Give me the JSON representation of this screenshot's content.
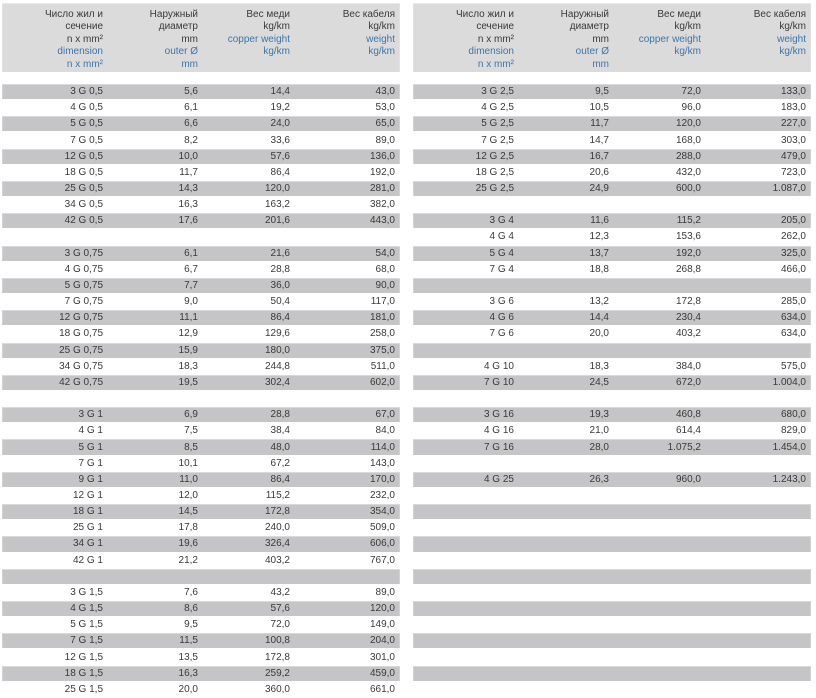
{
  "colors": {
    "row_gray": "#c5c5c7",
    "header_gray": "#dbdbdc",
    "text_dark": "#3a3a3a",
    "text_blue": "#3d76a9",
    "background": "#ffffff"
  },
  "header": {
    "columns": [
      {
        "ru": [
          "Число жил и",
          "сечение",
          "n x mm²"
        ],
        "en": [
          "dimension",
          "n x mm²"
        ]
      },
      {
        "ru": [
          "Наружный",
          "диаметр",
          "mm"
        ],
        "en": [
          "outer Ø",
          "mm"
        ]
      },
      {
        "ru": [
          "Вес меди",
          "kg/km"
        ],
        "en": [
          "copper weight",
          "kg/km"
        ]
      },
      {
        "ru": [
          "Вес кабеля",
          "kg/km"
        ],
        "en": [
          "weight",
          "kg/km"
        ]
      }
    ]
  },
  "tables": [
    {
      "name": "left",
      "rows": [
        {
          "type": "data",
          "shade": "gray",
          "cells": [
            "3 G 0,5",
            "5,6",
            "14,4",
            "43,0"
          ]
        },
        {
          "type": "data",
          "shade": "white",
          "cells": [
            "4 G 0,5",
            "6,1",
            "19,2",
            "53,0"
          ]
        },
        {
          "type": "data",
          "shade": "gray",
          "cells": [
            "5 G 0,5",
            "6,6",
            "24,0",
            "65,0"
          ]
        },
        {
          "type": "data",
          "shade": "white",
          "cells": [
            "7 G 0,5",
            "8,2",
            "33,6",
            "89,0"
          ]
        },
        {
          "type": "data",
          "shade": "gray",
          "cells": [
            "12 G 0,5",
            "10,0",
            "57,6",
            "136,0"
          ]
        },
        {
          "type": "data",
          "shade": "white",
          "cells": [
            "18 G 0,5",
            "11,7",
            "86,4",
            "192,0"
          ]
        },
        {
          "type": "data",
          "shade": "gray",
          "cells": [
            "25 G 0,5",
            "14,3",
            "120,0",
            "281,0"
          ]
        },
        {
          "type": "data",
          "shade": "white",
          "cells": [
            "34 G 0,5",
            "16,3",
            "163,2",
            "382,0"
          ]
        },
        {
          "type": "data",
          "shade": "gray",
          "cells": [
            "42 G 0,5",
            "17,6",
            "201,6",
            "443,0"
          ]
        },
        {
          "type": "spacer"
        },
        {
          "type": "data",
          "shade": "gray",
          "cells": [
            "3 G 0,75",
            "6,1",
            "21,6",
            "54,0"
          ]
        },
        {
          "type": "data",
          "shade": "white",
          "cells": [
            "4 G 0,75",
            "6,7",
            "28,8",
            "68,0"
          ]
        },
        {
          "type": "data",
          "shade": "gray",
          "cells": [
            "5 G 0,75",
            "7,7",
            "36,0",
            "90,0"
          ]
        },
        {
          "type": "data",
          "shade": "white",
          "cells": [
            "7 G 0,75",
            "9,0",
            "50,4",
            "117,0"
          ]
        },
        {
          "type": "data",
          "shade": "gray",
          "cells": [
            "12 G 0,75",
            "11,1",
            "86,4",
            "181,0"
          ]
        },
        {
          "type": "data",
          "shade": "white",
          "cells": [
            "18 G 0,75",
            "12,9",
            "129,6",
            "258,0"
          ]
        },
        {
          "type": "data",
          "shade": "gray",
          "cells": [
            "25 G 0,75",
            "15,9",
            "180,0",
            "375,0"
          ]
        },
        {
          "type": "data",
          "shade": "white",
          "cells": [
            "34 G 0,75",
            "18,3",
            "244,8",
            "511,0"
          ]
        },
        {
          "type": "data",
          "shade": "gray",
          "cells": [
            "42 G 0,75",
            "19,5",
            "302,4",
            "602,0"
          ]
        },
        {
          "type": "spacer"
        },
        {
          "type": "data",
          "shade": "gray",
          "cells": [
            "3 G 1",
            "6,9",
            "28,8",
            "67,0"
          ]
        },
        {
          "type": "data",
          "shade": "white",
          "cells": [
            "4 G 1",
            "7,5",
            "38,4",
            "84,0"
          ]
        },
        {
          "type": "data",
          "shade": "gray",
          "cells": [
            "5 G 1",
            "8,5",
            "48,0",
            "114,0"
          ]
        },
        {
          "type": "data",
          "shade": "white",
          "cells": [
            "7 G 1",
            "10,1",
            "67,2",
            "143,0"
          ]
        },
        {
          "type": "data",
          "shade": "gray",
          "cells": [
            "9 G 1",
            "11,0",
            "86,4",
            "170,0"
          ]
        },
        {
          "type": "data",
          "shade": "white",
          "cells": [
            "12 G 1",
            "12,0",
            "115,2",
            "232,0"
          ]
        },
        {
          "type": "data",
          "shade": "gray",
          "cells": [
            "18 G 1",
            "14,5",
            "172,8",
            "354,0"
          ]
        },
        {
          "type": "data",
          "shade": "white",
          "cells": [
            "25 G 1",
            "17,8",
            "240,0",
            "509,0"
          ]
        },
        {
          "type": "data",
          "shade": "gray",
          "cells": [
            "34 G 1",
            "19,6",
            "326,4",
            "606,0"
          ]
        },
        {
          "type": "data",
          "shade": "white",
          "cells": [
            "42 G 1",
            "21,2",
            "403,2",
            "767,0"
          ]
        },
        {
          "type": "empty",
          "shade": "gray"
        },
        {
          "type": "data",
          "shade": "white",
          "cells": [
            "3 G 1,5",
            "7,6",
            "43,2",
            "89,0"
          ]
        },
        {
          "type": "data",
          "shade": "gray",
          "cells": [
            "4 G 1,5",
            "8,6",
            "57,6",
            "120,0"
          ]
        },
        {
          "type": "data",
          "shade": "white",
          "cells": [
            "5 G 1,5",
            "9,5",
            "72,0",
            "149,0"
          ]
        },
        {
          "type": "data",
          "shade": "gray",
          "cells": [
            "7 G 1,5",
            "11,5",
            "100,8",
            "204,0"
          ]
        },
        {
          "type": "data",
          "shade": "white",
          "cells": [
            "12 G 1,5",
            "13,5",
            "172,8",
            "301,0"
          ]
        },
        {
          "type": "data",
          "shade": "gray",
          "cells": [
            "18 G 1,5",
            "16,3",
            "259,2",
            "459,0"
          ]
        },
        {
          "type": "data",
          "shade": "white",
          "cells": [
            "25 G 1,5",
            "20,0",
            "360,0",
            "661,0"
          ]
        }
      ]
    },
    {
      "name": "right",
      "rows": [
        {
          "type": "data",
          "shade": "gray",
          "cells": [
            "3 G 2,5",
            "9,5",
            "72,0",
            "133,0"
          ]
        },
        {
          "type": "data",
          "shade": "white",
          "cells": [
            "4 G 2,5",
            "10,5",
            "96,0",
            "183,0"
          ]
        },
        {
          "type": "data",
          "shade": "gray",
          "cells": [
            "5 G 2,5",
            "11,7",
            "120,0",
            "227,0"
          ]
        },
        {
          "type": "data",
          "shade": "white",
          "cells": [
            "7 G 2,5",
            "14,7",
            "168,0",
            "303,0"
          ]
        },
        {
          "type": "data",
          "shade": "gray",
          "cells": [
            "12 G 2,5",
            "16,7",
            "288,0",
            "479,0"
          ]
        },
        {
          "type": "data",
          "shade": "white",
          "cells": [
            "18 G 2,5",
            "20,6",
            "432,0",
            "723,0"
          ]
        },
        {
          "type": "data",
          "shade": "gray",
          "cells": [
            "25 G 2,5",
            "24,9",
            "600,0",
            "1.087,0"
          ]
        },
        {
          "type": "spacer"
        },
        {
          "type": "data",
          "shade": "gray",
          "cells": [
            "3 G 4",
            "11,6",
            "115,2",
            "205,0"
          ]
        },
        {
          "type": "data",
          "shade": "white",
          "cells": [
            "4 G 4",
            "12,3",
            "153,6",
            "262,0"
          ]
        },
        {
          "type": "data",
          "shade": "gray",
          "cells": [
            "5 G 4",
            "13,7",
            "192,0",
            "325,0"
          ]
        },
        {
          "type": "data",
          "shade": "white",
          "cells": [
            "7 G 4",
            "18,8",
            "268,8",
            "466,0"
          ]
        },
        {
          "type": "empty",
          "shade": "gray"
        },
        {
          "type": "data",
          "shade": "white",
          "cells": [
            "3 G 6",
            "13,2",
            "172,8",
            "285,0"
          ]
        },
        {
          "type": "data",
          "shade": "gray",
          "cells": [
            "4 G 6",
            "14,4",
            "230,4",
            "634,0"
          ]
        },
        {
          "type": "data",
          "shade": "white",
          "cells": [
            "7 G 6",
            "20,0",
            "403,2",
            "634,0"
          ]
        },
        {
          "type": "empty",
          "shade": "gray"
        },
        {
          "type": "data",
          "shade": "white",
          "cells": [
            "4 G 10",
            "18,3",
            "384,0",
            "575,0"
          ]
        },
        {
          "type": "data",
          "shade": "gray",
          "cells": [
            "7 G 10",
            "24,5",
            "672,0",
            "1.004,0"
          ]
        },
        {
          "type": "spacer"
        },
        {
          "type": "data",
          "shade": "gray",
          "cells": [
            "3 G 16",
            "19,3",
            "460,8",
            "680,0"
          ]
        },
        {
          "type": "data",
          "shade": "white",
          "cells": [
            "4 G 16",
            "21,0",
            "614,4",
            "829,0"
          ]
        },
        {
          "type": "data",
          "shade": "gray",
          "cells": [
            "7 G 16",
            "28,0",
            "1.075,2",
            "1.454,0"
          ]
        },
        {
          "type": "spacer"
        },
        {
          "type": "data",
          "shade": "gray",
          "cells": [
            "4 G 25",
            "26,3",
            "960,0",
            "1.243,0"
          ]
        },
        {
          "type": "spacer"
        },
        {
          "type": "empty",
          "shade": "gray"
        },
        {
          "type": "spacer"
        },
        {
          "type": "empty",
          "shade": "gray"
        },
        {
          "type": "spacer"
        },
        {
          "type": "empty",
          "shade": "gray"
        },
        {
          "type": "spacer"
        },
        {
          "type": "empty",
          "shade": "gray"
        },
        {
          "type": "spacer"
        },
        {
          "type": "empty",
          "shade": "gray"
        },
        {
          "type": "spacer"
        },
        {
          "type": "empty",
          "shade": "gray"
        }
      ]
    }
  ]
}
